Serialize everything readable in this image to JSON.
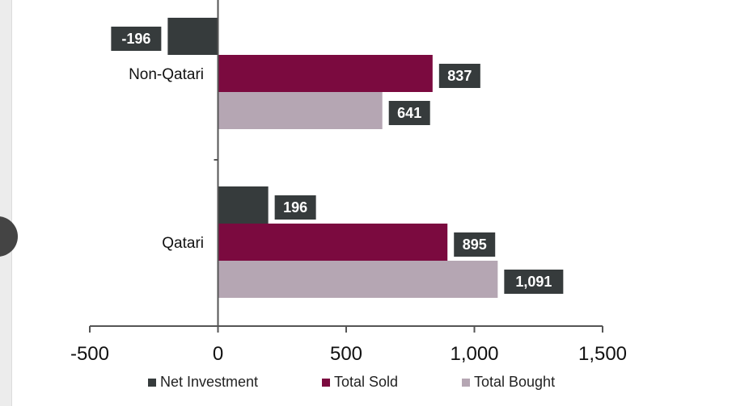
{
  "chart_data": {
    "type": "bar",
    "orientation": "horizontal",
    "categories": [
      "Non-Qatari",
      "Qatari"
    ],
    "series": [
      {
        "name": "Net Investment",
        "values": [
          -196,
          196
        ],
        "labels": [
          "-196",
          "196"
        ],
        "color": "#363b3c"
      },
      {
        "name": "Total Sold",
        "values": [
          837,
          895
        ],
        "labels": [
          "837",
          "895"
        ],
        "color": "#7b0a3f"
      },
      {
        "name": "Total Bought",
        "values": [
          641,
          1091
        ],
        "labels": [
          "641",
          "1,091"
        ],
        "color": "#b5a6b3"
      }
    ],
    "xlim": [
      -500,
      1500
    ],
    "xticks": [
      -500,
      0,
      500,
      1000,
      1500
    ],
    "xtick_labels": [
      "-500",
      "0",
      "500",
      "1,000",
      "1,500"
    ],
    "grid": false,
    "legend_position": "bottom",
    "label_box_color": "#363b3c"
  }
}
